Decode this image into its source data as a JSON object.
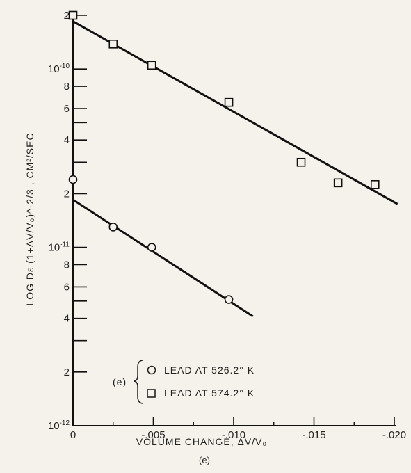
{
  "chart_data": {
    "type": "scatter",
    "xlabel": "VOLUME CHANGE, ΔV/V₀",
    "ylabel": "LOG Dε (1+ΔV/V₀)^-2/3 , CM²/SEC",
    "yscale": "log",
    "xlim": [
      0,
      -0.02
    ],
    "ylim": [
      1e-12,
      2e-10
    ],
    "x_tick_labels": [
      "0",
      "-.005",
      "-.010",
      "-.015",
      "-.020"
    ],
    "x_tick_values": [
      0,
      -0.005,
      -0.01,
      -0.015,
      -0.02
    ],
    "y_tick_values": [
      1e-12,
      2e-12,
      4e-12,
      6e-12,
      8e-12,
      1e-11,
      2e-11,
      4e-11,
      6e-11,
      8e-11,
      1e-10,
      2e-10
    ],
    "y_tick_labels": [
      {
        "base": "10",
        "exp": "-12",
        "value": 1e-12
      },
      {
        "base": "2",
        "exp": "",
        "value": 2e-12
      },
      {
        "base": "4",
        "exp": "",
        "value": 4e-12
      },
      {
        "base": "6",
        "exp": "",
        "value": 6e-12
      },
      {
        "base": "8",
        "exp": "",
        "value": 8e-12
      },
      {
        "base": "10",
        "exp": "-11",
        "value": 1e-11
      },
      {
        "base": "2",
        "exp": "",
        "value": 2e-11
      },
      {
        "base": "4",
        "exp": "",
        "value": 4e-11
      },
      {
        "base": "6",
        "exp": "",
        "value": 6e-11
      },
      {
        "base": "8",
        "exp": "",
        "value": 8e-11
      },
      {
        "base": "10",
        "exp": "-10",
        "value": 1e-10
      },
      {
        "base": "2",
        "exp": "",
        "value": 2e-10
      }
    ],
    "grid": false,
    "legend_position": "bottom-center",
    "legend_prefix": "(e)",
    "caption": "(e)",
    "series": [
      {
        "name": "LEAD AT 526.2° K",
        "marker": "circle",
        "points": [
          {
            "x": 0,
            "y": 2.4e-11
          },
          {
            "x": -0.0025,
            "y": 1.3e-11
          },
          {
            "x": -0.0049,
            "y": 1e-11
          },
          {
            "x": -0.0097,
            "y": 5.1e-12
          }
        ],
        "fit_line": [
          {
            "x": 0,
            "y": 1.85e-11
          },
          {
            "x": -0.0112,
            "y": 4.1e-12
          }
        ]
      },
      {
        "name": "LEAD AT 574.2° K",
        "marker": "square",
        "points": [
          {
            "x": 0,
            "y": 2e-10
          },
          {
            "x": -0.0025,
            "y": 1.38e-10
          },
          {
            "x": -0.0049,
            "y": 1.05e-10
          },
          {
            "x": -0.0097,
            "y": 6.5e-11
          },
          {
            "x": -0.0142,
            "y": 3e-11
          },
          {
            "x": -0.0165,
            "y": 2.3e-11
          },
          {
            "x": -0.0188,
            "y": 2.25e-11
          }
        ],
        "fit_line": [
          {
            "x": 0,
            "y": 1.85e-10
          },
          {
            "x": -0.0202,
            "y": 1.75e-11
          }
        ]
      }
    ]
  }
}
